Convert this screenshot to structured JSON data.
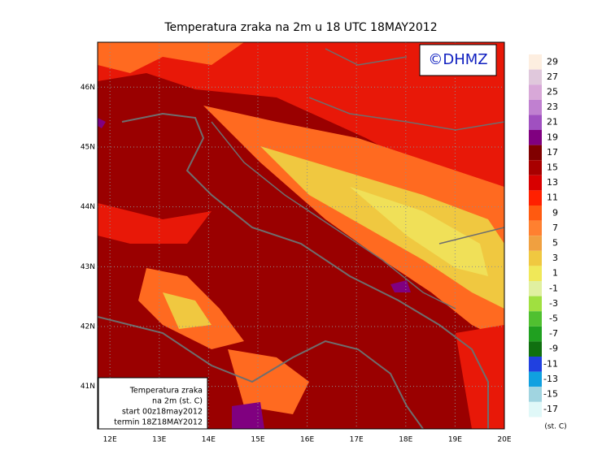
{
  "map": {
    "title": "Temperatura zraka na 2m u 18 UTC 18MAY2012",
    "logo": "©DHMZ",
    "xlim": [
      11.75,
      20
    ],
    "ylim": [
      40.29,
      46.75
    ],
    "lon_ticks": [
      {
        "value": 12,
        "label": "12E"
      },
      {
        "value": 13,
        "label": "13E"
      },
      {
        "value": 14,
        "label": "14E"
      },
      {
        "value": 15,
        "label": "15E"
      },
      {
        "value": 16,
        "label": "16E"
      },
      {
        "value": 17,
        "label": "17E"
      },
      {
        "value": 18,
        "label": "18E"
      },
      {
        "value": 19,
        "label": "19E"
      },
      {
        "value": 20,
        "label": "20E"
      }
    ],
    "lat_ticks": [
      {
        "value": 41,
        "label": "41N"
      },
      {
        "value": 42,
        "label": "42N"
      },
      {
        "value": 43,
        "label": "43N"
      },
      {
        "value": 44,
        "label": "44N"
      },
      {
        "value": 45,
        "label": "45N"
      },
      {
        "value": 46,
        "label": "46N"
      }
    ],
    "info_box": [
      "Temperatura zraka",
      "na 2m (st. C)",
      "start 00z18may2012",
      "termin 18Z18MAY2012"
    ],
    "colorbar": {
      "levels": [
        29,
        27,
        25,
        23,
        21,
        19,
        17,
        15,
        13,
        11,
        9,
        7,
        5,
        3,
        1,
        -1,
        -3,
        -5,
        -7,
        -9,
        -11,
        -13,
        -15,
        -17
      ],
      "colors": [
        "#fdeee0",
        "#e0c8dc",
        "#d8a8d8",
        "#c080d0",
        "#a050c0",
        "#800080",
        "#800000",
        "#a80000",
        "#d80000",
        "#ff2000",
        "#ff5a10",
        "#ff8030",
        "#f0a040",
        "#f0c840",
        "#f0e858",
        "#e0f0a0",
        "#a0e040",
        "#50c030",
        "#20a020",
        "#107010",
        "#2040e0",
        "#10a0e0",
        "#a0d4e0",
        "#e0f8f8"
      ],
      "unit": "(st. C)"
    }
  }
}
